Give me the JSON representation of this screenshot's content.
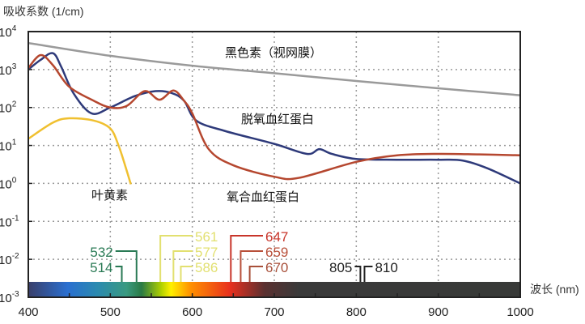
{
  "chart_data": {
    "type": "line",
    "title": "",
    "ylabel": "吸收系数 (1/cm)",
    "xlabel": "波长 (nm)",
    "xlim": [
      400,
      1000
    ],
    "ylim_log10": [
      -3,
      4
    ],
    "yscale": "log",
    "grid": true,
    "x_ticks": [
      "400",
      "500",
      "600",
      "700",
      "800",
      "900",
      "1000"
    ],
    "x_tick_values": [
      400,
      500,
      600,
      700,
      800,
      900,
      1000
    ],
    "y_ticks": [
      {
        "base": "10",
        "exp": "4",
        "value": 4
      },
      {
        "base": "10",
        "exp": "3",
        "value": 3
      },
      {
        "base": "10",
        "exp": "2",
        "value": 2
      },
      {
        "base": "10",
        "exp": "1",
        "value": 1
      },
      {
        "base": "10",
        "exp": "0",
        "value": 0
      },
      {
        "base": "10",
        "exp": "-1",
        "value": -1
      },
      {
        "base": "10",
        "exp": "-2",
        "value": -2
      },
      {
        "base": "10",
        "exp": "-3",
        "value": -3
      }
    ],
    "series": [
      {
        "name": "黑色素（视网膜）",
        "color": "#9a9a9a",
        "x": [
          400,
          500,
          600,
          700,
          800,
          900,
          1000
        ],
        "y": [
          5000,
          2300,
          1260,
          800,
          500,
          320,
          210
        ]
      },
      {
        "name": "脱氧血红蛋白",
        "color": "#2e3a7a",
        "x": [
          400,
          415,
          430,
          440,
          455,
          477,
          500,
          530,
          555,
          575,
          590,
          605,
          640,
          700,
          740,
          755,
          770,
          800,
          850,
          900,
          930,
          960,
          1000
        ],
        "y": [
          1000,
          1800,
          2700,
          1200,
          240,
          70,
          100,
          200,
          270,
          240,
          150,
          45,
          24,
          11,
          6,
          8,
          6,
          4.4,
          4.2,
          4.2,
          4,
          2.5,
          1
        ]
      },
      {
        "name": "氧合血红蛋白",
        "color": "#b5472f",
        "x": [
          400,
          415,
          430,
          450,
          480,
          500,
          520,
          542,
          560,
          577,
          590,
          600,
          620,
          650,
          700,
          730,
          800,
          850,
          900,
          950,
          1000
        ],
        "y": [
          1100,
          2400,
          1300,
          350,
          150,
          100,
          110,
          270,
          160,
          280,
          150,
          70,
          8,
          3,
          1.5,
          1.4,
          3.7,
          5.5,
          6,
          5.8,
          5.5
        ]
      },
      {
        "name": "叶黄素",
        "color": "#f0c030",
        "x": [
          400,
          430,
          450,
          480,
          500,
          510,
          518,
          525
        ],
        "y": [
          15,
          40,
          52,
          45,
          28,
          10,
          3,
          0.95
        ]
      }
    ],
    "annotations": [
      {
        "text": "黑色素（视网膜）"
      },
      {
        "text": "脱氧血红蛋白"
      },
      {
        "text": "叶黄素"
      },
      {
        "text": "氧合血红蛋白"
      }
    ],
    "laser_lines": [
      {
        "label": "532",
        "nm": 532,
        "row": 1,
        "side": "left",
        "color": "#2a7a55"
      },
      {
        "label": "514",
        "nm": 514,
        "row": 2,
        "side": "left",
        "color": "#2a7a55"
      },
      {
        "label": "561",
        "nm": 561,
        "row": 0,
        "side": "right",
        "color": "#e2e070"
      },
      {
        "label": "577",
        "nm": 577,
        "row": 1,
        "side": "right",
        "color": "#e2e070"
      },
      {
        "label": "586",
        "nm": 586,
        "row": 2,
        "side": "right",
        "color": "#e2e070"
      },
      {
        "label": "647",
        "nm": 647,
        "row": 0,
        "side": "right",
        "color": "#c8352a"
      },
      {
        "label": "659",
        "nm": 659,
        "row": 1,
        "side": "right",
        "color": "#b8503a"
      },
      {
        "label": "670",
        "nm": 670,
        "row": 2,
        "side": "right",
        "color": "#a8503a"
      },
      {
        "label": "805",
        "nm": 805,
        "row": 2,
        "side": "left",
        "color": "#222222"
      },
      {
        "label": "810",
        "nm": 810,
        "row": 2,
        "side": "right",
        "color": "#222222"
      }
    ]
  }
}
